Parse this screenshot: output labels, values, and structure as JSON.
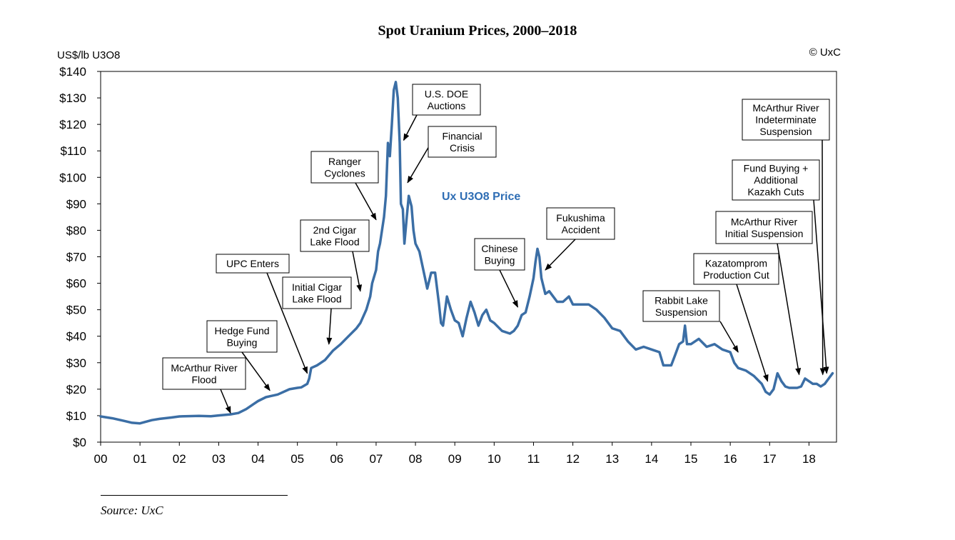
{
  "colors": {
    "line": "#3b6ea5",
    "series_label": "#2e6db4"
  },
  "chart_data": {
    "type": "line",
    "title": "Spot Uranium Prices, 2000–2018",
    "ylabel": "US$/lb U3O8",
    "copyright": "© UxC",
    "source": "Source: UxC",
    "series_label": "Ux U3O8 Price",
    "xlim": [
      0,
      18.7
    ],
    "ylim": [
      0,
      140
    ],
    "x_ticks": [
      {
        "value": 0,
        "label": "00"
      },
      {
        "value": 1,
        "label": "01"
      },
      {
        "value": 2,
        "label": "02"
      },
      {
        "value": 3,
        "label": "03"
      },
      {
        "value": 4,
        "label": "04"
      },
      {
        "value": 5,
        "label": "05"
      },
      {
        "value": 6,
        "label": "06"
      },
      {
        "value": 7,
        "label": "07"
      },
      {
        "value": 8,
        "label": "08"
      },
      {
        "value": 9,
        "label": "09"
      },
      {
        "value": 10,
        "label": "10"
      },
      {
        "value": 11,
        "label": "11"
      },
      {
        "value": 12,
        "label": "12"
      },
      {
        "value": 13,
        "label": "13"
      },
      {
        "value": 14,
        "label": "14"
      },
      {
        "value": 15,
        "label": "15"
      },
      {
        "value": 16,
        "label": "16"
      },
      {
        "value": 17,
        "label": "17"
      },
      {
        "value": 18,
        "label": "18"
      }
    ],
    "y_ticks": [
      {
        "value": 0,
        "label": "$0"
      },
      {
        "value": 10,
        "label": "$10"
      },
      {
        "value": 20,
        "label": "$20"
      },
      {
        "value": 30,
        "label": "$30"
      },
      {
        "value": 40,
        "label": "$40"
      },
      {
        "value": 50,
        "label": "$50"
      },
      {
        "value": 60,
        "label": "$60"
      },
      {
        "value": 70,
        "label": "$70"
      },
      {
        "value": 80,
        "label": "$80"
      },
      {
        "value": 90,
        "label": "$90"
      },
      {
        "value": 100,
        "label": "$100"
      },
      {
        "value": 110,
        "label": "$110"
      },
      {
        "value": 120,
        "label": "$120"
      },
      {
        "value": 130,
        "label": "$130"
      },
      {
        "value": 140,
        "label": "$140"
      }
    ],
    "series": [
      {
        "name": "Ux U3O8 Price",
        "points": [
          [
            0.0,
            9.7
          ],
          [
            0.3,
            9.0
          ],
          [
            0.6,
            8.0
          ],
          [
            0.8,
            7.3
          ],
          [
            1.0,
            7.1
          ],
          [
            1.1,
            7.5
          ],
          [
            1.3,
            8.3
          ],
          [
            1.5,
            8.8
          ],
          [
            1.8,
            9.3
          ],
          [
            2.0,
            9.7
          ],
          [
            2.5,
            9.9
          ],
          [
            2.8,
            9.8
          ],
          [
            3.0,
            10.1
          ],
          [
            3.3,
            10.5
          ],
          [
            3.5,
            11.0
          ],
          [
            3.7,
            12.5
          ],
          [
            3.9,
            14.5
          ],
          [
            4.0,
            15.5
          ],
          [
            4.2,
            17.0
          ],
          [
            4.5,
            18.0
          ],
          [
            4.8,
            20.0
          ],
          [
            5.0,
            20.5
          ],
          [
            5.1,
            20.7
          ],
          [
            5.25,
            22.0
          ],
          [
            5.3,
            24.0
          ],
          [
            5.35,
            28.0
          ],
          [
            5.5,
            29.0
          ],
          [
            5.7,
            31.0
          ],
          [
            5.9,
            34.5
          ],
          [
            6.1,
            37.0
          ],
          [
            6.3,
            40.0
          ],
          [
            6.5,
            43.0
          ],
          [
            6.6,
            45.0
          ],
          [
            6.75,
            50.0
          ],
          [
            6.85,
            55.0
          ],
          [
            6.9,
            60.0
          ],
          [
            7.0,
            65.0
          ],
          [
            7.05,
            72.0
          ],
          [
            7.1,
            75.0
          ],
          [
            7.2,
            85.0
          ],
          [
            7.25,
            93.0
          ],
          [
            7.3,
            113.0
          ],
          [
            7.35,
            108.0
          ],
          [
            7.4,
            120.0
          ],
          [
            7.45,
            133.0
          ],
          [
            7.5,
            136.0
          ],
          [
            7.55,
            130.0
          ],
          [
            7.6,
            113.0
          ],
          [
            7.63,
            90.0
          ],
          [
            7.68,
            88.0
          ],
          [
            7.72,
            75.0
          ],
          [
            7.78,
            85.0
          ],
          [
            7.83,
            93.0
          ],
          [
            7.9,
            89.0
          ],
          [
            7.95,
            80.0
          ],
          [
            8.0,
            75.0
          ],
          [
            8.1,
            72.0
          ],
          [
            8.2,
            65.0
          ],
          [
            8.3,
            58.0
          ],
          [
            8.4,
            64.0
          ],
          [
            8.5,
            64.0
          ],
          [
            8.6,
            52.0
          ],
          [
            8.65,
            45.0
          ],
          [
            8.7,
            44.0
          ],
          [
            8.8,
            55.0
          ],
          [
            8.9,
            50.0
          ],
          [
            9.0,
            46.0
          ],
          [
            9.1,
            45.0
          ],
          [
            9.2,
            40.0
          ],
          [
            9.3,
            47.0
          ],
          [
            9.4,
            53.0
          ],
          [
            9.5,
            49.0
          ],
          [
            9.6,
            44.0
          ],
          [
            9.7,
            48.0
          ],
          [
            9.8,
            50.0
          ],
          [
            9.9,
            46.0
          ],
          [
            10.0,
            45.0
          ],
          [
            10.2,
            42.0
          ],
          [
            10.4,
            41.0
          ],
          [
            10.5,
            42.0
          ],
          [
            10.6,
            44.0
          ],
          [
            10.7,
            48.0
          ],
          [
            10.8,
            49.0
          ],
          [
            10.9,
            55.0
          ],
          [
            11.0,
            62.0
          ],
          [
            11.05,
            68.0
          ],
          [
            11.1,
            73.0
          ],
          [
            11.15,
            70.0
          ],
          [
            11.2,
            62.0
          ],
          [
            11.3,
            56.0
          ],
          [
            11.4,
            57.0
          ],
          [
            11.5,
            55.0
          ],
          [
            11.6,
            53.0
          ],
          [
            11.75,
            53.0
          ],
          [
            11.9,
            55.0
          ],
          [
            12.0,
            52.0
          ],
          [
            12.2,
            52.0
          ],
          [
            12.4,
            52.0
          ],
          [
            12.6,
            50.0
          ],
          [
            12.8,
            47.0
          ],
          [
            13.0,
            43.0
          ],
          [
            13.2,
            42.0
          ],
          [
            13.4,
            38.0
          ],
          [
            13.6,
            35.0
          ],
          [
            13.8,
            36.0
          ],
          [
            14.0,
            35.0
          ],
          [
            14.2,
            34.0
          ],
          [
            14.3,
            29.0
          ],
          [
            14.5,
            29.0
          ],
          [
            14.6,
            33.0
          ],
          [
            14.7,
            37.0
          ],
          [
            14.8,
            38.0
          ],
          [
            14.85,
            44.0
          ],
          [
            14.9,
            37.0
          ],
          [
            15.0,
            37.0
          ],
          [
            15.2,
            39.0
          ],
          [
            15.4,
            36.0
          ],
          [
            15.6,
            37.0
          ],
          [
            15.8,
            35.0
          ],
          [
            16.0,
            34.0
          ],
          [
            16.1,
            30.0
          ],
          [
            16.2,
            28.0
          ],
          [
            16.4,
            27.0
          ],
          [
            16.6,
            25.0
          ],
          [
            16.8,
            22.0
          ],
          [
            16.9,
            19.0
          ],
          [
            17.0,
            18.0
          ],
          [
            17.1,
            20.0
          ],
          [
            17.2,
            26.0
          ],
          [
            17.3,
            23.0
          ],
          [
            17.4,
            21.0
          ],
          [
            17.5,
            20.5
          ],
          [
            17.7,
            20.5
          ],
          [
            17.8,
            21.0
          ],
          [
            17.9,
            24.0
          ],
          [
            18.0,
            23.0
          ],
          [
            18.1,
            22.0
          ],
          [
            18.2,
            22.0
          ],
          [
            18.3,
            21.0
          ],
          [
            18.4,
            22.0
          ],
          [
            18.5,
            24.0
          ],
          [
            18.6,
            26.0
          ]
        ]
      }
    ],
    "annotations": [
      {
        "lines": [
          "McArthur River",
          "Flood"
        ],
        "arrow_to": [
          3.3,
          11.0
        ]
      },
      {
        "lines": [
          "Hedge Fund",
          "Buying"
        ],
        "arrow_to": [
          4.3,
          19.5
        ]
      },
      {
        "lines": [
          "UPC Enters"
        ],
        "arrow_to": [
          5.25,
          26.0
        ]
      },
      {
        "lines": [
          "Initial Cigar",
          "Lake Flood"
        ],
        "arrow_to": [
          5.8,
          37.0
        ]
      },
      {
        "lines": [
          "2nd Cigar",
          "Lake Flood"
        ],
        "arrow_to": [
          6.6,
          57.0
        ]
      },
      {
        "lines": [
          "Ranger",
          "Cyclones"
        ],
        "arrow_to": [
          7.0,
          84.0
        ]
      },
      {
        "lines": [
          "U.S. DOE",
          "Auctions"
        ],
        "arrow_to": [
          7.7,
          114.0
        ]
      },
      {
        "lines": [
          "Financial",
          "Crisis"
        ],
        "arrow_to": [
          7.8,
          98.0
        ]
      },
      {
        "lines": [
          "Chinese",
          "Buying"
        ],
        "arrow_to": [
          10.6,
          51.0
        ]
      },
      {
        "lines": [
          "Fukushima",
          "Accident"
        ],
        "arrow_to": [
          11.3,
          65.0
        ]
      },
      {
        "lines": [
          "Rabbit Lake",
          "Suspension"
        ],
        "arrow_to": [
          16.2,
          34.0
        ]
      },
      {
        "lines": [
          "Kazatomprom",
          "Production Cut"
        ],
        "arrow_to": [
          16.95,
          23.0
        ]
      },
      {
        "lines": [
          "McArthur River",
          "Initial Suspension"
        ],
        "arrow_to": [
          17.75,
          25.5
        ]
      },
      {
        "lines": [
          "Fund Buying +",
          "Additional",
          "Kazakh Cuts"
        ],
        "arrow_to": [
          18.45,
          26.0
        ]
      },
      {
        "lines": [
          "McArthur River",
          "Indeterminate",
          "Suspension"
        ],
        "arrow_to": [
          18.35,
          25.5
        ]
      }
    ]
  }
}
